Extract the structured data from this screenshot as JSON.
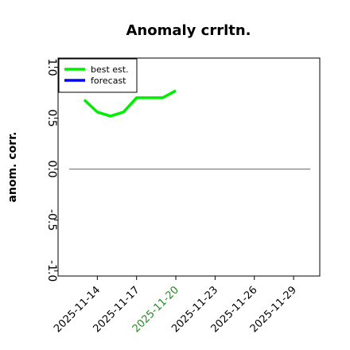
{
  "chart_data": {
    "type": "line",
    "title": "Anomaly crrltn.",
    "y_label": "anom. corr.",
    "x": [
      "2025-11-13",
      "2025-11-14",
      "2025-11-15",
      "2025-11-16",
      "2025-11-17",
      "2025-11-18",
      "2025-11-19",
      "2025-11-20"
    ],
    "series": [
      {
        "name": "best est.",
        "color": "#00ee00",
        "values": [
          0.68,
          0.56,
          0.52,
          0.56,
          0.7,
          0.7,
          0.7,
          0.77
        ]
      },
      {
        "name": "forecast",
        "color": "#0000ff",
        "values": [
          null,
          null,
          null,
          null,
          null,
          null,
          null,
          null
        ]
      }
    ],
    "xlim": [
      "2025-11-11",
      "2025-12-01"
    ],
    "xticks": [
      "2025-11-14",
      "2025-11-17",
      "2025-11-20",
      "2025-11-23",
      "2025-11-26",
      "2025-11-29"
    ],
    "highlighted_xtick": "2025-11-20",
    "highlight_color": "#228b22",
    "ylim": [
      -1.05,
      1.09
    ],
    "yticks": [
      {
        "value": -1,
        "label": "-1.0"
      },
      -0.5,
      {
        "value": 0,
        "label": "0.0"
      },
      0.5,
      {
        "value": 1,
        "label": "1.0"
      }
    ],
    "reference_line": 0,
    "reference_color": "#777777",
    "legend": "upper left",
    "grid": false
  }
}
